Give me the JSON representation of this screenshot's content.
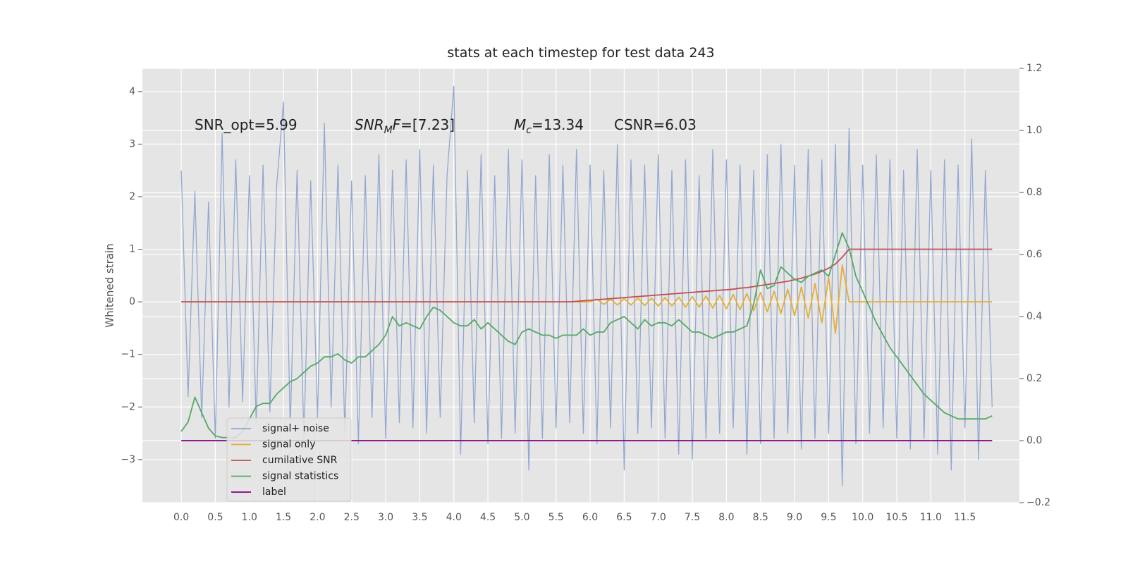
{
  "chart_data": {
    "type": "line",
    "title": "stats at each timestep for test data 243",
    "ylabel": "Whitened strain",
    "annotations": [
      [
        "SNR_opt=5.99"
      ],
      [
        "SNR",
        "M",
        "F",
        "=[7.23]"
      ],
      [
        "M",
        "c",
        "=13.34"
      ],
      [
        "CSNR=6.03"
      ]
    ],
    "grid": true,
    "legend": "lower left",
    "xlim": [
      -0.57,
      12.3
    ],
    "ylim": [
      -3.82,
      4.44
    ],
    "y2lim": [
      -0.2,
      1.2
    ],
    "xticks": [
      {
        "value": 0,
        "label": "0.0"
      },
      {
        "value": 0.5,
        "label": "0.5"
      },
      {
        "value": 1,
        "label": "1.0"
      },
      {
        "value": 1.5,
        "label": "1.5"
      },
      {
        "value": 2,
        "label": "2.0"
      },
      {
        "value": 2.5,
        "label": "2.5"
      },
      {
        "value": 3,
        "label": "3.0"
      },
      {
        "value": 3.5,
        "label": "3.5"
      },
      {
        "value": 4,
        "label": "4.0"
      },
      {
        "value": 4.5,
        "label": "4.5"
      },
      {
        "value": 5,
        "label": "5.0"
      },
      {
        "value": 5.5,
        "label": "5.5"
      },
      {
        "value": 6,
        "label": "6.0"
      },
      {
        "value": 6.5,
        "label": "6.5"
      },
      {
        "value": 7,
        "label": "7.0"
      },
      {
        "value": 7.5,
        "label": "7.5"
      },
      {
        "value": 8,
        "label": "8.0"
      },
      {
        "value": 8.5,
        "label": "8.5"
      },
      {
        "value": 9,
        "label": "9.0"
      },
      {
        "value": 9.5,
        "label": "9.5"
      },
      {
        "value": 10,
        "label": "10.0"
      },
      {
        "value": 10.5,
        "label": "10.5"
      },
      {
        "value": 11,
        "label": "11.0"
      },
      {
        "value": 11.5,
        "label": "11.5"
      }
    ],
    "yticks": [
      {
        "value": -3,
        "label": "−3"
      },
      {
        "value": -2,
        "label": "−2"
      },
      {
        "value": -1,
        "label": "−1"
      },
      0,
      1,
      2,
      3,
      4
    ],
    "y2ticks": [
      {
        "value": -0.2,
        "label": "−0.2"
      },
      {
        "value": 0,
        "label": "0.0"
      },
      {
        "value": 0.2,
        "label": "0.2"
      },
      {
        "value": 0.4,
        "label": "0.4"
      },
      {
        "value": 0.6,
        "label": "0.6"
      },
      {
        "value": 0.8,
        "label": "0.8"
      },
      {
        "value": 1,
        "label": "1.0"
      },
      {
        "value": 1.2,
        "label": "1.2"
      }
    ],
    "x": [
      0,
      0.1,
      0.2,
      0.3,
      0.4,
      0.5,
      0.6,
      0.7,
      0.8,
      0.9,
      1,
      1.1,
      1.2,
      1.3,
      1.4,
      1.5,
      1.6,
      1.7,
      1.8,
      1.9,
      2,
      2.1,
      2.2,
      2.3,
      2.4,
      2.5,
      2.6,
      2.7,
      2.8,
      2.9,
      3,
      3.1,
      3.2,
      3.3,
      3.4,
      3.5,
      3.6,
      3.7,
      3.8,
      3.9,
      4,
      4.1,
      4.2,
      4.3,
      4.4,
      4.5,
      4.6,
      4.7,
      4.8,
      4.9,
      5,
      5.1,
      5.2,
      5.3,
      5.4,
      5.5,
      5.6,
      5.7,
      5.8,
      5.9,
      6,
      6.1,
      6.2,
      6.3,
      6.4,
      6.5,
      6.6,
      6.7,
      6.8,
      6.9,
      7,
      7.1,
      7.2,
      7.3,
      7.4,
      7.5,
      7.6,
      7.7,
      7.8,
      7.9,
      8,
      8.1,
      8.2,
      8.3,
      8.4,
      8.5,
      8.6,
      8.7,
      8.8,
      8.9,
      9,
      9.1,
      9.2,
      9.3,
      9.4,
      9.5,
      9.6,
      9.7,
      9.8,
      9.9,
      10,
      10.1,
      10.2,
      10.3,
      10.4,
      10.5,
      10.6,
      10.7,
      10.8,
      10.9,
      11,
      11.1,
      11.2,
      11.3,
      11.4,
      11.5,
      11.6,
      11.7,
      11.8,
      11.9
    ],
    "series": [
      {
        "name": "signal+ noise",
        "color": "#92a8d1",
        "values": [
          2.5,
          -1.8,
          2.1,
          -2.2,
          1.9,
          -2.6,
          3.2,
          -2.0,
          2.7,
          -1.9,
          2.4,
          -2.3,
          2.6,
          -2.1,
          2.2,
          3.8,
          -2.4,
          2.5,
          -2.6,
          2.3,
          -2.2,
          3.4,
          -2.0,
          2.6,
          -2.5,
          2.3,
          -2.7,
          2.4,
          -2.2,
          2.8,
          -2.6,
          2.5,
          -2.3,
          2.7,
          -2.4,
          2.9,
          -2.5,
          2.6,
          -2.2,
          2.4,
          4.1,
          -2.9,
          2.5,
          -2.3,
          2.8,
          -2.7,
          2.4,
          -2.6,
          2.9,
          -2.5,
          2.7,
          -3.2,
          2.4,
          -2.6,
          2.8,
          -2.4,
          2.6,
          -2.3,
          2.9,
          -2.5,
          2.6,
          -2.7,
          2.5,
          -2.4,
          3.0,
          -3.2,
          2.7,
          -2.5,
          2.6,
          -2.4,
          2.8,
          -2.6,
          2.5,
          -2.9,
          2.7,
          -3.0,
          2.4,
          -2.6,
          2.9,
          -2.5,
          2.7,
          -2.4,
          2.6,
          -2.9,
          2.5,
          -2.7,
          2.8,
          -2.6,
          3.0,
          -2.5,
          2.6,
          -2.8,
          2.9,
          -2.6,
          2.7,
          -2.5,
          3.0,
          -3.5,
          3.3,
          -2.7,
          2.6,
          -2.5,
          2.8,
          -2.4,
          2.7,
          -2.6,
          2.5,
          -2.8,
          2.9,
          -2.6,
          2.5,
          -2.9,
          2.7,
          -3.2,
          2.6,
          -2.4,
          3.1,
          -3.0,
          2.5,
          -2.0
        ]
      },
      {
        "name": "signal only",
        "color": "#e5ae38",
        "values": [
          0,
          0,
          0,
          0,
          0,
          0,
          0,
          0,
          0,
          0,
          0,
          0,
          0,
          0,
          0,
          0,
          0,
          0,
          0,
          0,
          0,
          0,
          0,
          0,
          0,
          0,
          0,
          0,
          0,
          0,
          0,
          0,
          0,
          0,
          0,
          0,
          0,
          0,
          0,
          0,
          0,
          0,
          0,
          0,
          0,
          0,
          0,
          0,
          0,
          0,
          0,
          0,
          0,
          0,
          0,
          0,
          0,
          0,
          0,
          0,
          0,
          0.05,
          -0.05,
          0.05,
          -0.06,
          0.06,
          -0.06,
          0.07,
          -0.07,
          0.07,
          -0.08,
          0.08,
          -0.08,
          0.09,
          -0.1,
          0.1,
          -0.1,
          0.11,
          -0.12,
          0.12,
          -0.13,
          0.14,
          -0.15,
          0.16,
          -0.17,
          0.18,
          -0.19,
          0.2,
          -0.22,
          0.24,
          -0.26,
          0.28,
          -0.31,
          0.35,
          -0.4,
          0.46,
          -0.6,
          0.7,
          0,
          0,
          0,
          0,
          0,
          0,
          0,
          0,
          0,
          0,
          0,
          0,
          0,
          0,
          0,
          0,
          0,
          0,
          0,
          0,
          0,
          0
        ]
      },
      {
        "name": "cumilative SNR",
        "color": "#c44e52",
        "values": [
          0,
          0,
          0,
          0,
          0,
          0,
          0,
          0,
          0,
          0,
          0,
          0,
          0,
          0,
          0,
          0,
          0,
          0,
          0,
          0,
          0,
          0,
          0,
          0,
          0,
          0,
          0,
          0,
          0,
          0,
          0,
          0,
          0,
          0,
          0,
          0,
          0,
          0,
          0,
          0,
          0,
          0,
          0,
          0,
          0,
          0,
          0,
          0,
          0,
          0,
          0,
          0,
          0,
          0,
          0,
          0,
          0,
          0,
          0.01,
          0.02,
          0.03,
          0.04,
          0.05,
          0.06,
          0.07,
          0.08,
          0.09,
          0.1,
          0.11,
          0.12,
          0.13,
          0.14,
          0.15,
          0.16,
          0.17,
          0.18,
          0.19,
          0.2,
          0.21,
          0.22,
          0.23,
          0.24,
          0.26,
          0.27,
          0.29,
          0.31,
          0.33,
          0.35,
          0.37,
          0.39,
          0.42,
          0.45,
          0.49,
          0.53,
          0.58,
          0.64,
          0.72,
          0.85,
          1,
          1,
          1,
          1,
          1,
          1,
          1,
          1,
          1,
          1,
          1,
          1,
          1,
          1,
          1,
          1,
          1,
          1,
          1,
          1,
          1,
          1
        ]
      },
      {
        "name": "signal statistics",
        "color": "#55a868",
        "axis": "y2",
        "values": [
          0.03,
          0.06,
          0.14,
          0.09,
          0.04,
          0.015,
          0.01,
          0.01,
          0.01,
          0.03,
          0.07,
          0.11,
          0.12,
          0.12,
          0.15,
          0.17,
          0.19,
          0.2,
          0.22,
          0.24,
          0.25,
          0.27,
          0.27,
          0.28,
          0.26,
          0.25,
          0.27,
          0.27,
          0.29,
          0.31,
          0.34,
          0.4,
          0.37,
          0.38,
          0.37,
          0.36,
          0.4,
          0.43,
          0.42,
          0.4,
          0.38,
          0.37,
          0.37,
          0.39,
          0.36,
          0.38,
          0.36,
          0.34,
          0.32,
          0.31,
          0.35,
          0.36,
          0.35,
          0.34,
          0.34,
          0.33,
          0.34,
          0.34,
          0.34,
          0.36,
          0.34,
          0.35,
          0.35,
          0.38,
          0.39,
          0.4,
          0.38,
          0.36,
          0.39,
          0.37,
          0.38,
          0.38,
          0.37,
          0.39,
          0.37,
          0.35,
          0.35,
          0.34,
          0.33,
          0.34,
          0.35,
          0.35,
          0.36,
          0.37,
          0.44,
          0.55,
          0.49,
          0.5,
          0.56,
          0.54,
          0.52,
          0.51,
          0.53,
          0.54,
          0.55,
          0.53,
          0.6,
          0.67,
          0.62,
          0.53,
          0.48,
          0.43,
          0.38,
          0.34,
          0.3,
          0.27,
          0.24,
          0.21,
          0.18,
          0.15,
          0.13,
          0.11,
          0.09,
          0.08,
          0.07,
          0.07,
          0.07,
          0.07,
          0.07,
          0.08
        ]
      },
      {
        "name": "label",
        "color": "#800080",
        "axis": "y2",
        "values": [
          0,
          0,
          0,
          0,
          0,
          0,
          0,
          0,
          0,
          0,
          0,
          0,
          0,
          0,
          0,
          0,
          0,
          0,
          0,
          0,
          0,
          0,
          0,
          0,
          0,
          0,
          0,
          0,
          0,
          0,
          0,
          0,
          0,
          0,
          0,
          0,
          0,
          0,
          0,
          0,
          0,
          0,
          0,
          0,
          0,
          0,
          0,
          0,
          0,
          0,
          0,
          0,
          0,
          0,
          0,
          0,
          0,
          0,
          0,
          0,
          0,
          0,
          0,
          0,
          0,
          0,
          0,
          0,
          0,
          0,
          0,
          0,
          0,
          0,
          0,
          0,
          0,
          0,
          0,
          0,
          0,
          0,
          0,
          0,
          0,
          0,
          0,
          0,
          0,
          0,
          0,
          0,
          0,
          0,
          0,
          0,
          0,
          0,
          0,
          0,
          0,
          0,
          0,
          0,
          0,
          0,
          0,
          0,
          0,
          0,
          0,
          0,
          0,
          0,
          0,
          0,
          0,
          0,
          0,
          0
        ]
      }
    ]
  }
}
